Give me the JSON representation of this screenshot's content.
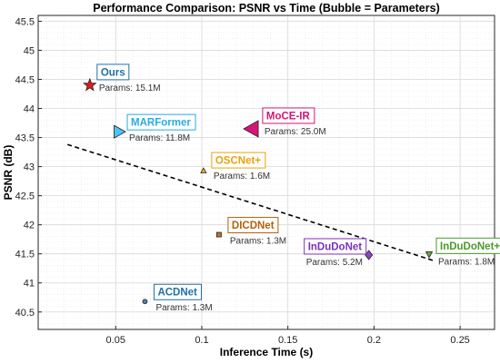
{
  "chart_data": {
    "type": "scatter",
    "title": "Performance Comparison: PSNR vs Time (Bubble = Parameters)",
    "xlabel": "Inference Time (s)",
    "ylabel": "PSNR (dB)",
    "xlim": [
      0.005,
      0.27
    ],
    "ylim": [
      40.2,
      45.6
    ],
    "xticks": [
      0.05,
      0.1,
      0.15,
      0.2,
      0.25
    ],
    "xtick_labels": [
      "0.05",
      "0.1",
      "0.15",
      "0.2",
      "0.25"
    ],
    "yticks": [
      40.5,
      41,
      41.5,
      42,
      42.5,
      43,
      43.5,
      44,
      44.5,
      45,
      45.5
    ],
    "ytick_labels": [
      "40.5",
      "41",
      "41.5",
      "42",
      "42.5",
      "43",
      "43.5",
      "44",
      "44.5",
      "45",
      "45.5"
    ],
    "grid": true,
    "points": [
      {
        "name": "Ours",
        "params_label": "Params: 15.1M",
        "x": 0.035,
        "y": 44.4,
        "marker": "star",
        "color": "#e31a1c",
        "label_color": "#1f6fa8"
      },
      {
        "name": "MARFormer",
        "params_label": "Params: 11.8M",
        "x": 0.052,
        "y": 43.6,
        "marker": "triangle-right",
        "color": "#4fc3f7",
        "label_color": "#29abe2"
      },
      {
        "name": "MoCE-IR",
        "params_label": "Params: 25.0M",
        "x": 0.129,
        "y": 43.65,
        "marker": "triangle-left",
        "color": "#d6147a",
        "label_color": "#d6147a"
      },
      {
        "name": "OSCNet+",
        "params_label": "Params: 1.6M",
        "x": 0.101,
        "y": 42.93,
        "marker": "triangle-up",
        "color": "#f2b01e",
        "label_color": "#e8a20c"
      },
      {
        "name": "DICDNet",
        "params_label": "Params: 1.3M",
        "x": 0.11,
        "y": 41.83,
        "marker": "square",
        "color": "#b87333",
        "label_color": "#b45f06"
      },
      {
        "name": "InDuDoNet",
        "params_label": "Params: 5.2M",
        "x": 0.197,
        "y": 41.48,
        "marker": "diamond",
        "color": "#8e44c4",
        "label_color": "#7b2fbe"
      },
      {
        "name": "InDuDoNet+",
        "params_label": "Params: 1.8M",
        "x": 0.232,
        "y": 41.49,
        "marker": "triangle-down",
        "color": "#6aaa3a",
        "label_color": "#4b9a2a"
      },
      {
        "name": "ACDNet",
        "params_label": "Params: 1.3M",
        "x": 0.067,
        "y": 40.68,
        "marker": "circle",
        "color": "#4a7fb5",
        "label_color": "#1f6fa8"
      }
    ],
    "trendline": {
      "style": "dashed",
      "x": [
        0.022,
        0.235
      ],
      "y": [
        43.38,
        41.38
      ]
    }
  }
}
